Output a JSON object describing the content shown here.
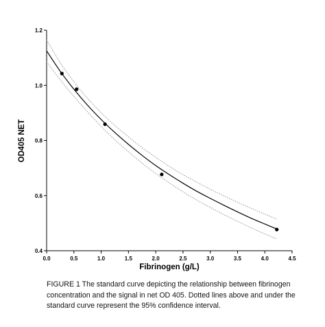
{
  "chart_data": {
    "type": "scatter",
    "xlabel": "Fibrinogen (g/L)",
    "ylabel": "OD405 NET",
    "xlim": [
      0.0,
      4.5
    ],
    "ylim": [
      0.4,
      1.2
    ],
    "xticks": [
      "0.0",
      "0.5",
      "1.0",
      "1.5",
      "2.0",
      "2.5",
      "3.0",
      "3.5",
      "4.0",
      "4.5"
    ],
    "yticks": [
      "0.4",
      "0.6",
      "0.8",
      "1.0",
      "1.2"
    ],
    "grid": false,
    "legend": "none",
    "points": [
      {
        "x": 0.28,
        "y": 1.043
      },
      {
        "x": 0.55,
        "y": 0.986
      },
      {
        "x": 1.07,
        "y": 0.859
      },
      {
        "x": 2.11,
        "y": 0.677
      },
      {
        "x": 4.22,
        "y": 0.477
      }
    ],
    "fit_curve": {
      "x": [
        0.0,
        0.25,
        0.5,
        0.75,
        1.0,
        1.25,
        1.5,
        1.75,
        2.0,
        2.25,
        2.5,
        2.75,
        3.0,
        3.25,
        3.5,
        3.75,
        4.0,
        4.22
      ],
      "y": [
        1.125,
        1.051,
        0.986,
        0.928,
        0.876,
        0.829,
        0.786,
        0.746,
        0.709,
        0.676,
        0.645,
        0.616,
        0.59,
        0.565,
        0.541,
        0.518,
        0.497,
        0.479
      ]
    },
    "ci_upper": {
      "x": [
        0.0,
        0.25,
        0.5,
        0.75,
        1.0,
        1.25,
        1.5,
        1.75,
        2.0,
        2.25,
        2.5,
        2.75,
        3.0,
        3.25,
        3.5,
        3.75,
        4.0,
        4.22
      ],
      "y": [
        1.165,
        1.082,
        1.013,
        0.953,
        0.901,
        0.855,
        0.813,
        0.774,
        0.739,
        0.706,
        0.676,
        0.649,
        0.623,
        0.599,
        0.576,
        0.554,
        0.533,
        0.515
      ]
    },
    "ci_lower": {
      "x": [
        0.0,
        0.25,
        0.5,
        0.75,
        1.0,
        1.25,
        1.5,
        1.75,
        2.0,
        2.25,
        2.5,
        2.75,
        3.0,
        3.25,
        3.5,
        3.75,
        4.0,
        4.22
      ],
      "y": [
        1.085,
        1.02,
        0.96,
        0.904,
        0.851,
        0.803,
        0.759,
        0.718,
        0.68,
        0.646,
        0.614,
        0.584,
        0.557,
        0.531,
        0.507,
        0.483,
        0.461,
        0.443
      ]
    },
    "colors": {
      "curve": "#000000",
      "ci": "#8c8c8c",
      "points": "#000000"
    }
  },
  "caption": "FIGURE 1 The standard curve depicting the relationship between fibrinogen concentration and the signal in net OD 405. Dotted lines above and under the standard curve represent the 95% confidence interval."
}
